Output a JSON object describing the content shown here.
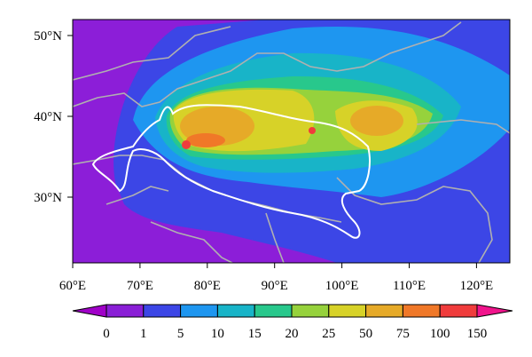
{
  "map": {
    "lon_labels": [
      "60°E",
      "70°E",
      "80°E",
      "90°E",
      "100°E",
      "110°E",
      "120°E"
    ],
    "lat_labels": [
      "50°N",
      "40°N",
      "30°N"
    ],
    "colorbar": {
      "labels": [
        "0",
        "1",
        "5",
        "10",
        "15",
        "20",
        "25",
        "50",
        "75",
        "100",
        "150"
      ],
      "colors": [
        "#a000c8",
        "#8a1fd6",
        "#3c46e6",
        "#1e96f0",
        "#18b4c8",
        "#28c88c",
        "#96d23c",
        "#d7d228",
        "#e6aa28",
        "#f07828",
        "#f03c3c",
        "#f0148c"
      ]
    }
  }
}
